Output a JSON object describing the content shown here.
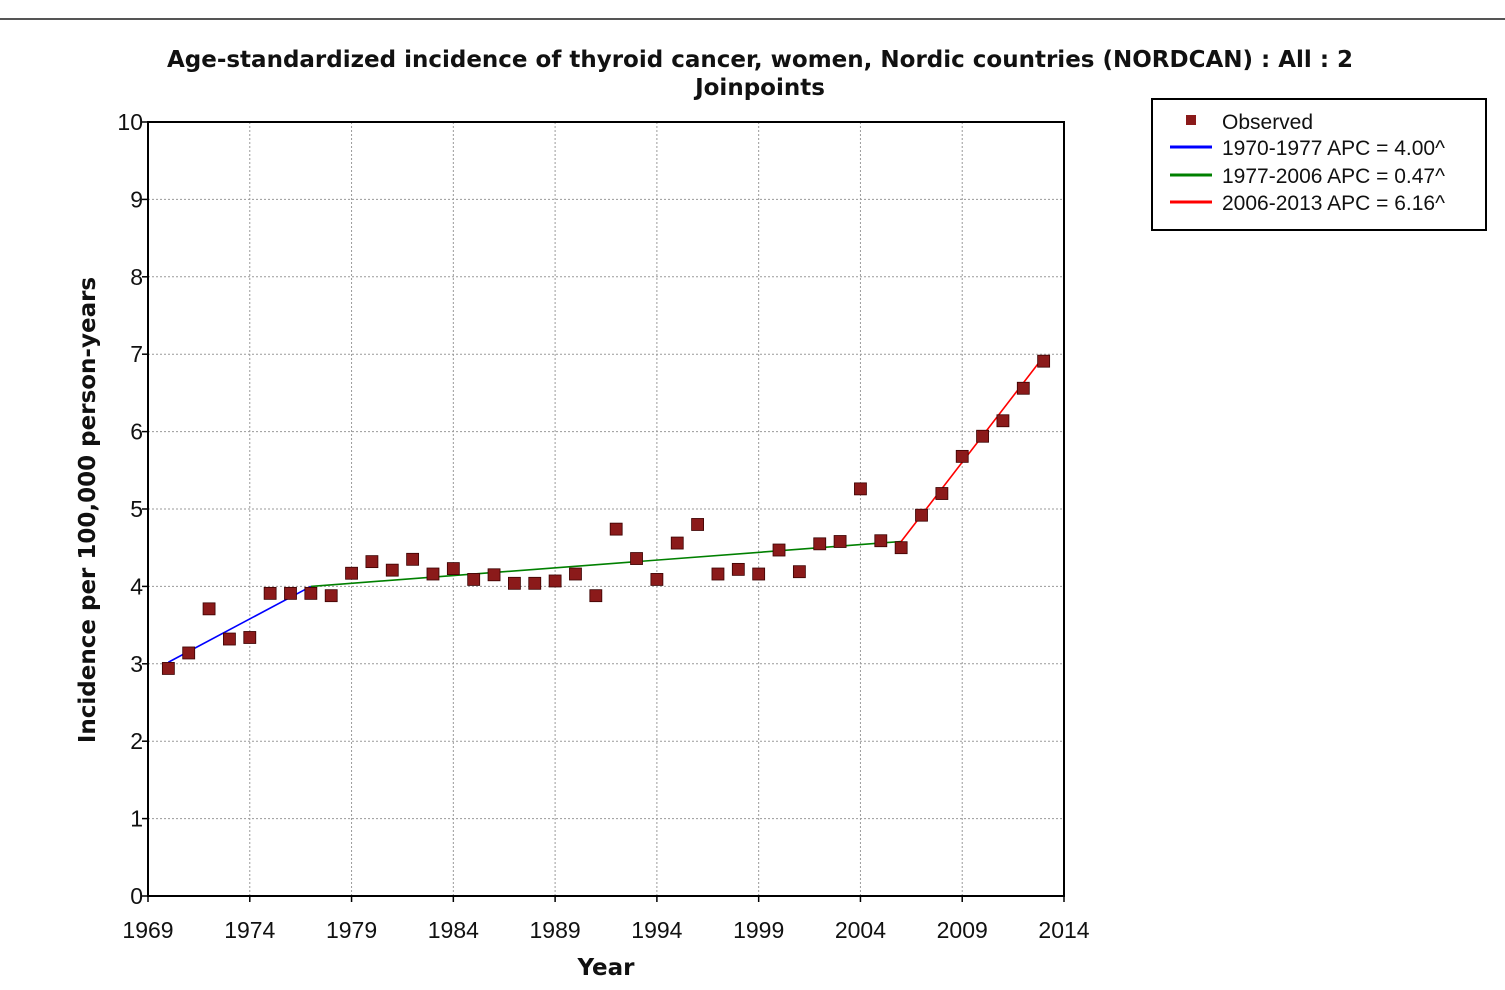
{
  "chart_data": {
    "type": "scatter",
    "title_line1": "Age-standardized incidence of thyroid cancer, women, Nordic countries (NORDCAN) : All : 2",
    "title_line2": "Joinpoints",
    "xlabel": "Year",
    "ylabel": "Incidence per 100,000 person-years",
    "xlim": [
      1969,
      2014
    ],
    "ylim": [
      0,
      10
    ],
    "x_ticks": [
      1969,
      1974,
      1979,
      1984,
      1989,
      1994,
      1999,
      2004,
      2009,
      2014
    ],
    "y_ticks": [
      0,
      1,
      2,
      3,
      4,
      5,
      6,
      7,
      8,
      9,
      10
    ],
    "grid": true,
    "legend_placement": "top-right",
    "observed": {
      "name": "Observed",
      "color": "#8b1a1a",
      "x": [
        1970,
        1971,
        1972,
        1973,
        1974,
        1975,
        1976,
        1977,
        1978,
        1979,
        1980,
        1981,
        1982,
        1983,
        1984,
        1985,
        1986,
        1987,
        1988,
        1989,
        1990,
        1991,
        1992,
        1993,
        1994,
        1995,
        1996,
        1997,
        1998,
        1999,
        2000,
        2001,
        2002,
        2003,
        2004,
        2005,
        2006,
        2007,
        2008,
        2009,
        2010,
        2011,
        2012,
        2013
      ],
      "y": [
        2.94,
        3.14,
        3.71,
        3.32,
        3.34,
        3.91,
        3.91,
        3.91,
        3.88,
        4.17,
        4.32,
        4.21,
        4.35,
        4.16,
        4.23,
        4.09,
        4.15,
        4.04,
        4.04,
        4.07,
        4.16,
        3.88,
        4.74,
        4.36,
        4.09,
        4.56,
        4.8,
        4.16,
        4.22,
        4.16,
        4.47,
        4.19,
        4.55,
        4.58,
        5.26,
        4.59,
        4.5,
        4.92,
        5.2,
        5.68,
        5.94,
        6.14,
        6.56,
        6.91
      ]
    },
    "series": [
      {
        "name": "1970-1977 APC  = 4.00^",
        "color": "#0000ff",
        "x": [
          1970,
          1977
        ],
        "y": [
          3.02,
          4.0
        ]
      },
      {
        "name": "1977-2006 APC  = 0.47^",
        "color": "#008000",
        "x": [
          1977,
          2006
        ],
        "y": [
          4.0,
          4.58
        ]
      },
      {
        "name": "2006-2013 APC  = 6.16^",
        "color": "#ff0000",
        "x": [
          2006,
          2013
        ],
        "y": [
          4.58,
          6.97
        ]
      }
    ]
  }
}
